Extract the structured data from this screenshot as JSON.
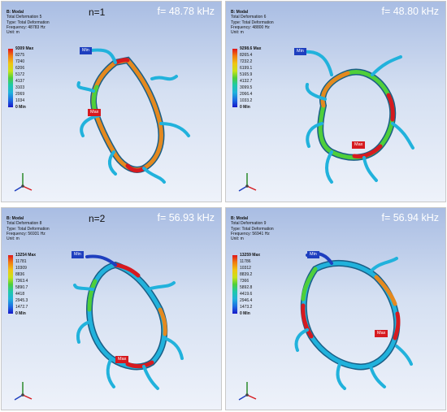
{
  "panels": [
    {
      "frequency": "f= 48.78 kHz",
      "mode_label": "n=1",
      "header": [
        "B: Modal",
        "Total Deformation 5",
        "Type: Total Deformation",
        "Frequency: 48783 Hz",
        "Unit: m"
      ],
      "legend": [
        "9309 Max",
        "8275",
        "7240",
        "6206",
        "5172",
        "4137",
        "3103",
        "2069",
        "1034",
        "0 Min"
      ],
      "min_tag": "Min",
      "max_tag": "Max"
    },
    {
      "frequency": "f= 48.80 kHz",
      "mode_label": "",
      "header": [
        "B: Modal",
        "Total Deformation 6",
        "Type: Total Deformation",
        "Frequency: 48800 Hz",
        "Unit: m"
      ],
      "legend": [
        "9298.6 Max",
        "8265.4",
        "7232.2",
        "6199.1",
        "5165.9",
        "4132.7",
        "3099.5",
        "2066.4",
        "1033.2",
        "0 Min"
      ],
      "min_tag": "Min",
      "max_tag": "Max"
    },
    {
      "frequency": "f= 56.93 kHz",
      "mode_label": "n=2",
      "header": [
        "B: Modal",
        "Total Deformation 8",
        "Type: Total Deformation",
        "Frequency: 56931 Hz",
        "Unit: m"
      ],
      "legend": [
        "13254 Max",
        "11781",
        "10309",
        "8836",
        "7363.4",
        "5890.7",
        "4418",
        "2945.3",
        "1472.7",
        "0 Min"
      ],
      "min_tag": "Min",
      "max_tag": "Max"
    },
    {
      "frequency": "f= 56.94 kHz",
      "mode_label": "",
      "header": [
        "B: Modal",
        "Total Deformation 9",
        "Type: Total Deformation",
        "Frequency: 56941 Hz",
        "Unit: m"
      ],
      "legend": [
        "13259 Max",
        "11786",
        "10312",
        "8839.2",
        "7366",
        "5892.8",
        "4419.6",
        "2946.4",
        "1473.2",
        "0 Min"
      ],
      "min_tag": "Min",
      "max_tag": "Max"
    }
  ],
  "colors": {
    "max": "#d61a1f",
    "min": "#1e3fbf",
    "ring_high": "#e4891f",
    "ring_mid": "#4fcf3a",
    "ring_low": "#21b2dc"
  }
}
